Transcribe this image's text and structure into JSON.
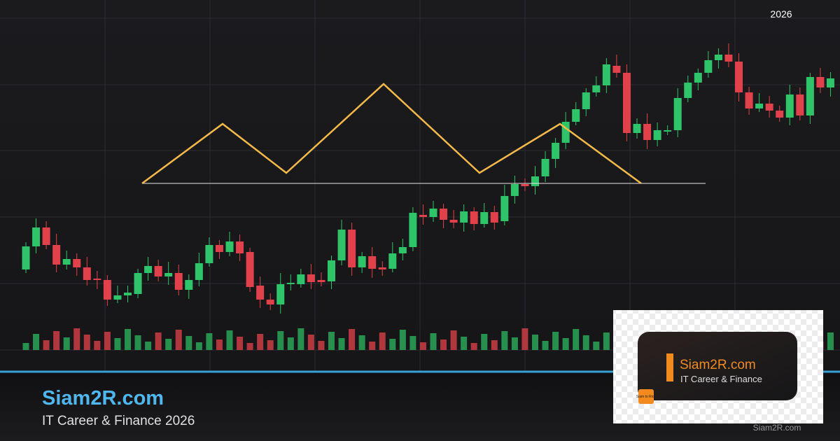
{
  "header": {
    "year": "2026"
  },
  "footer": {
    "title": "Siam2R.com",
    "subtitle": "IT Career & Finance 2026"
  },
  "card": {
    "title": "Siam2R.com",
    "subtitle": "IT Career & Finance",
    "logo": "Siam to Rich",
    "watermark": "Siam2R.com"
  }
}
